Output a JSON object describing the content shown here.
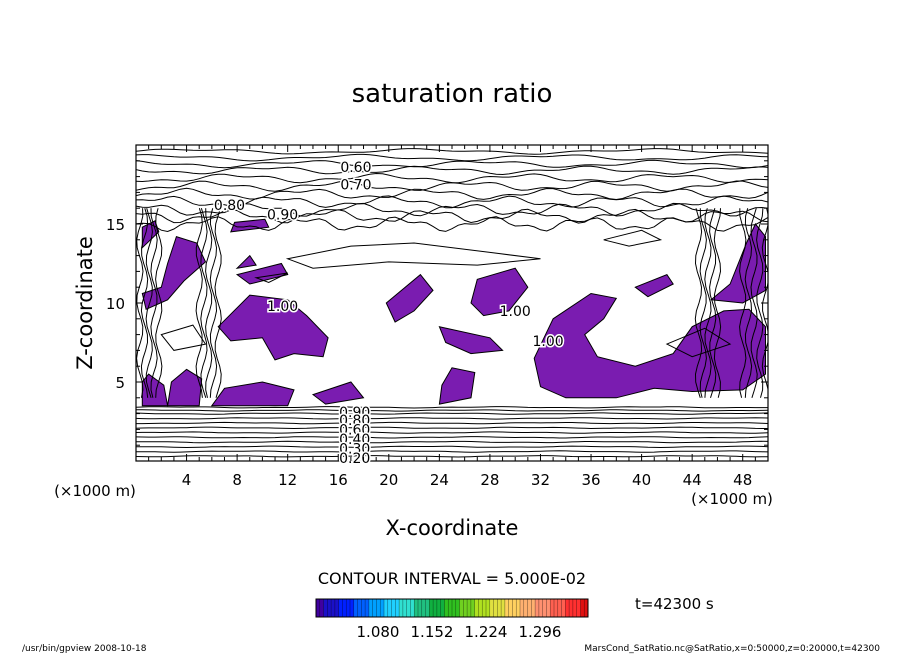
{
  "chart_data": {
    "type": "contour",
    "title": "saturation ratio",
    "xlabel": "X-coordinate",
    "ylabel": "Z-coordinate",
    "x_unit_left": "(×1000 m)",
    "x_unit_right": "(×1000 m)",
    "xlim": [
      0,
      50
    ],
    "ylim": [
      0,
      20
    ],
    "x_ticks": [
      "4",
      "8",
      "12",
      "16",
      "20",
      "24",
      "28",
      "32",
      "36",
      "40",
      "44",
      "48"
    ],
    "y_ticks": [
      "5",
      "10",
      "15"
    ],
    "contour_interval_text": "CONTOUR INTERVAL = 5.000E-02",
    "time_text": "t=42300 s",
    "contour_labels": [
      {
        "text": "0.60",
        "x": 17.4,
        "z": 18.6
      },
      {
        "text": "0.70",
        "x": 17.4,
        "z": 17.5
      },
      {
        "text": "0.80",
        "x": 7.4,
        "z": 16.2
      },
      {
        "text": "0.90",
        "x": 11.6,
        "z": 15.6
      },
      {
        "text": "1.00",
        "x": 11.6,
        "z": 9.8
      },
      {
        "text": "1.00",
        "x": 30.0,
        "z": 9.5
      },
      {
        "text": "1.00",
        "x": 32.6,
        "z": 7.6
      },
      {
        "text": "0.90",
        "x": 17.3,
        "z": 3.1
      },
      {
        "text": "0.80",
        "x": 17.3,
        "z": 2.6
      },
      {
        "text": "0.60",
        "x": 17.3,
        "z": 2.0
      },
      {
        "text": "0.40",
        "x": 17.3,
        "z": 1.4
      },
      {
        "text": "0.30",
        "x": 17.3,
        "z": 0.8
      },
      {
        "text": "0.20",
        "x": 17.3,
        "z": 0.2
      }
    ],
    "supersaturated_regions": [
      [
        [
          0.5,
          3.5
        ],
        [
          2.5,
          3.5
        ],
        [
          2.2,
          4.8
        ],
        [
          1.0,
          5.5
        ],
        [
          0.5,
          5.0
        ]
      ],
      [
        [
          2.5,
          3.5
        ],
        [
          5.0,
          3.5
        ],
        [
          5.2,
          5.2
        ],
        [
          4.0,
          5.8
        ],
        [
          2.8,
          5.0
        ]
      ],
      [
        [
          6.0,
          3.5
        ],
        [
          12.0,
          3.5
        ],
        [
          12.5,
          4.5
        ],
        [
          10.0,
          5.0
        ],
        [
          7.0,
          4.6
        ]
      ],
      [
        [
          6.5,
          8.5
        ],
        [
          9.0,
          10.5
        ],
        [
          12.0,
          10.2
        ],
        [
          13.5,
          9.2
        ],
        [
          15.2,
          7.8
        ],
        [
          14.8,
          6.6
        ],
        [
          12.5,
          6.8
        ],
        [
          11.0,
          6.4
        ],
        [
          10.0,
          7.8
        ],
        [
          7.5,
          7.6
        ]
      ],
      [
        [
          0.5,
          10.6
        ],
        [
          2.0,
          11.0
        ],
        [
          2.5,
          12.5
        ],
        [
          3.2,
          14.2
        ],
        [
          4.8,
          13.8
        ],
        [
          5.5,
          12.6
        ],
        [
          3.8,
          11.4
        ],
        [
          2.5,
          10.2
        ],
        [
          0.8,
          9.6
        ]
      ],
      [
        [
          0.5,
          13.5
        ],
        [
          1.8,
          14.5
        ],
        [
          1.5,
          15.2
        ],
        [
          0.5,
          14.8
        ]
      ],
      [
        [
          7.5,
          14.5
        ],
        [
          10.5,
          14.8
        ],
        [
          10.2,
          15.3
        ],
        [
          7.8,
          15.1
        ]
      ],
      [
        [
          8.0,
          11.8
        ],
        [
          11.5,
          12.5
        ],
        [
          12.0,
          11.8
        ],
        [
          9.0,
          11.2
        ]
      ],
      [
        [
          19.8,
          10.0
        ],
        [
          22.5,
          11.8
        ],
        [
          23.5,
          10.8
        ],
        [
          22.0,
          9.5
        ],
        [
          20.5,
          8.8
        ]
      ],
      [
        [
          27.0,
          11.5
        ],
        [
          30.0,
          12.2
        ],
        [
          31.0,
          11.0
        ],
        [
          29.5,
          9.5
        ],
        [
          27.5,
          9.2
        ],
        [
          26.5,
          10.0
        ]
      ],
      [
        [
          24.0,
          8.5
        ],
        [
          28.0,
          7.8
        ],
        [
          29.0,
          7.0
        ],
        [
          26.5,
          6.8
        ],
        [
          24.5,
          7.5
        ]
      ],
      [
        [
          14.0,
          4.2
        ],
        [
          17.0,
          5.0
        ],
        [
          18.0,
          4.0
        ],
        [
          15.0,
          3.6
        ]
      ],
      [
        [
          24.0,
          3.6
        ],
        [
          26.5,
          4.0
        ],
        [
          26.8,
          5.6
        ],
        [
          25.0,
          5.9
        ],
        [
          24.2,
          4.8
        ]
      ],
      [
        [
          33.0,
          9.0
        ],
        [
          36.0,
          10.6
        ],
        [
          38.0,
          10.3
        ],
        [
          37.0,
          9.0
        ],
        [
          35.5,
          8.0
        ],
        [
          36.5,
          6.6
        ],
        [
          39.5,
          6.0
        ],
        [
          42.5,
          6.8
        ],
        [
          44.0,
          8.5
        ],
        [
          46.5,
          9.5
        ],
        [
          48.5,
          9.6
        ],
        [
          49.8,
          8.5
        ],
        [
          49.8,
          5.5
        ],
        [
          48.0,
          4.5
        ],
        [
          44.0,
          4.4
        ],
        [
          41.0,
          4.6
        ],
        [
          38.0,
          4.0
        ],
        [
          34.0,
          4.0
        ],
        [
          32.0,
          4.7
        ],
        [
          31.5,
          6.5
        ]
      ],
      [
        [
          45.5,
          10.2
        ],
        [
          47.0,
          11.2
        ],
        [
          48.3,
          13.8
        ],
        [
          49.0,
          15.0
        ],
        [
          49.8,
          14.2
        ],
        [
          49.8,
          10.8
        ],
        [
          48.0,
          10.0
        ]
      ],
      [
        [
          39.5,
          11.0
        ],
        [
          42.0,
          11.8
        ],
        [
          42.5,
          11.2
        ],
        [
          40.5,
          10.4
        ]
      ],
      [
        [
          8.0,
          12.2
        ],
        [
          9.0,
          13.0
        ],
        [
          9.5,
          12.4
        ]
      ]
    ],
    "colorbar": {
      "tick_labels": [
        "1.080",
        "1.152",
        "1.224",
        "1.296"
      ],
      "colors": [
        "#4000a0",
        "#1a10c8",
        "#0020ff",
        "#0060ff",
        "#00a0ff",
        "#20d0ff",
        "#30e0d0",
        "#20c080",
        "#10b040",
        "#30c020",
        "#70d020",
        "#b0e020",
        "#e0e040",
        "#ffd060",
        "#ffb070",
        "#ff9070",
        "#ff6050",
        "#ff3030",
        "#e01010"
      ]
    },
    "fill_color": "#7a1cb0"
  },
  "footer": {
    "left": "/usr/bin/gpview   2008-10-18",
    "right": "MarsCond_SatRatio.nc@SatRatio,x=0:50000,z=0:20000,t=42300"
  }
}
